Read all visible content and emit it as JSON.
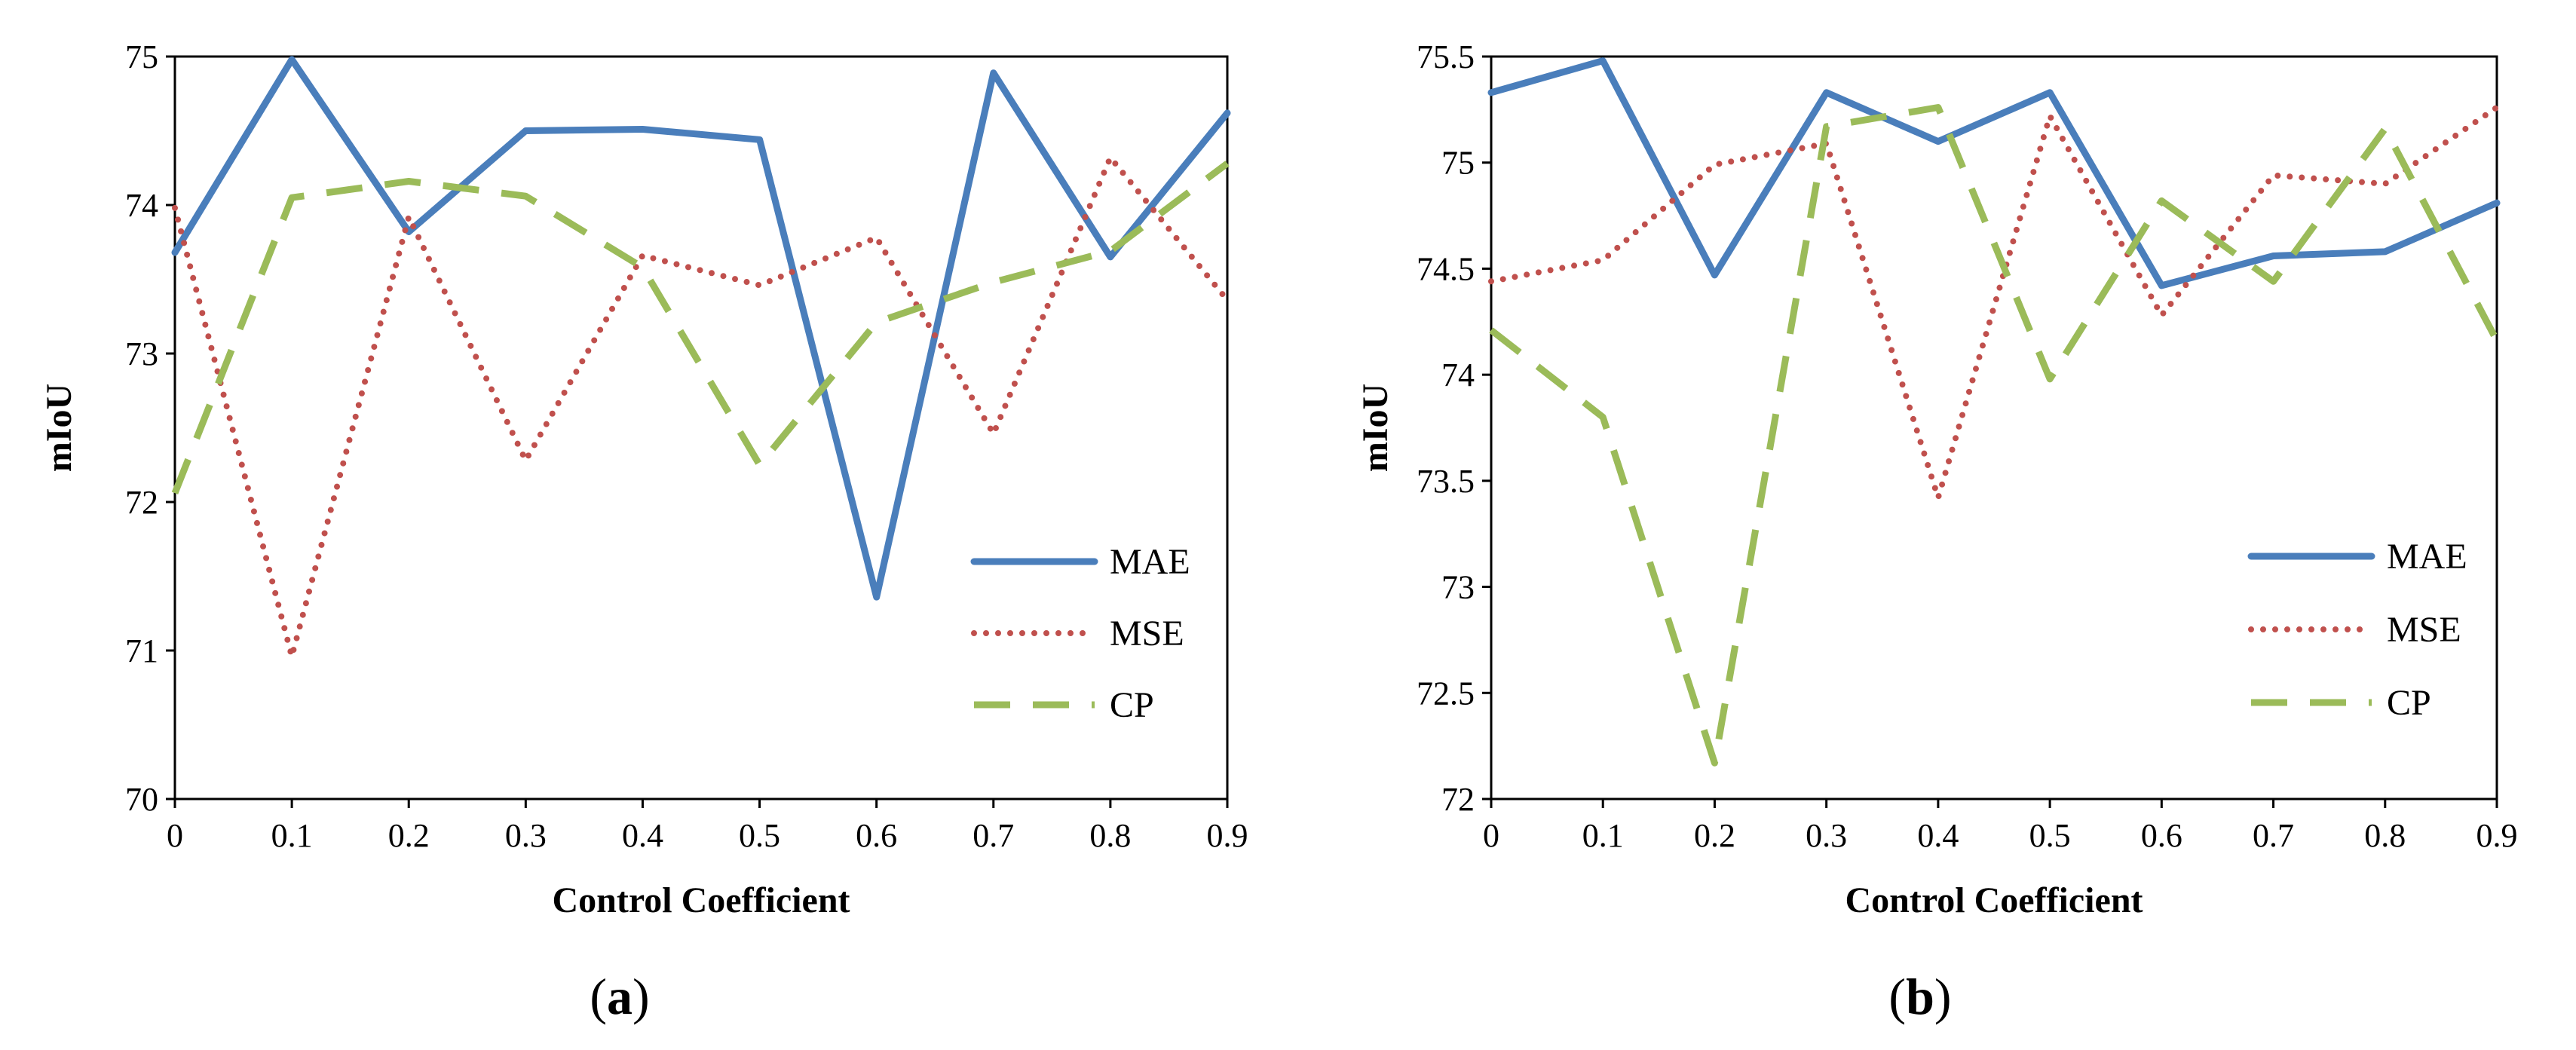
{
  "colors": {
    "MAE": "#4a7ebb",
    "MSE": "#c0504d",
    "CP": "#9bbb59"
  },
  "chart_data": [
    {
      "type": "line",
      "panel_label": "a",
      "title": "",
      "xlabel": "Control Coefficient",
      "ylabel": "mIoU",
      "x": [
        0,
        0.1,
        0.2,
        0.3,
        0.4,
        0.5,
        0.6,
        0.7,
        0.8,
        0.9
      ],
      "x_tick_labels": [
        "0",
        "0.1",
        "0.2",
        "0.3",
        "0.4",
        "0.5",
        "0.6",
        "0.7",
        "0.8",
        "0.9"
      ],
      "ylim": [
        70,
        75
      ],
      "y_ticks": [
        70,
        71,
        72,
        73,
        74,
        75
      ],
      "y_tick_labels": [
        "70",
        "71",
        "72",
        "73",
        "74",
        "75"
      ],
      "grid": false,
      "legend_position": "bottom-right",
      "series": [
        {
          "name": "MAE",
          "style": "solid",
          "values": [
            73.68,
            74.98,
            73.82,
            74.5,
            74.51,
            74.44,
            71.36,
            74.89,
            73.65,
            74.62
          ]
        },
        {
          "name": "MSE",
          "style": "dotted",
          "values": [
            73.98,
            70.96,
            73.92,
            72.28,
            73.66,
            73.46,
            73.78,
            72.46,
            74.32,
            73.36
          ]
        },
        {
          "name": "CP",
          "style": "dashed",
          "values": [
            72.06,
            74.05,
            74.16,
            74.06,
            73.58,
            72.25,
            73.21,
            73.48,
            73.69,
            74.28
          ]
        }
      ]
    },
    {
      "type": "line",
      "panel_label": "b",
      "title": "",
      "xlabel": "Control Coefficient",
      "ylabel": "mIoU",
      "x": [
        0,
        0.1,
        0.2,
        0.3,
        0.4,
        0.5,
        0.6,
        0.7,
        0.8,
        0.9
      ],
      "x_tick_labels": [
        "0",
        "0.1",
        "0.2",
        "0.3",
        "0.4",
        "0.5",
        "0.6",
        "0.7",
        "0.8",
        "0.9"
      ],
      "ylim": [
        72,
        75.5
      ],
      "y_ticks": [
        72,
        72.5,
        73,
        73.5,
        74,
        74.5,
        75,
        75.5
      ],
      "y_tick_labels": [
        "72",
        "72.5",
        "73",
        "73.5",
        "74",
        "74.5",
        "75",
        "75.5"
      ],
      "grid": false,
      "legend_position": "bottom-right",
      "series": [
        {
          "name": "MAE",
          "style": "solid",
          "values": [
            75.33,
            75.48,
            74.47,
            75.33,
            75.1,
            75.33,
            74.42,
            74.56,
            74.58,
            74.81
          ]
        },
        {
          "name": "MSE",
          "style": "dotted",
          "values": [
            74.44,
            74.54,
            74.99,
            75.09,
            73.42,
            75.22,
            74.28,
            74.94,
            74.9,
            75.26
          ]
        },
        {
          "name": "CP",
          "style": "dashed",
          "values": [
            74.21,
            73.8,
            72.17,
            75.17,
            75.26,
            73.98,
            74.82,
            74.44,
            75.16,
            74.16
          ]
        }
      ]
    }
  ]
}
